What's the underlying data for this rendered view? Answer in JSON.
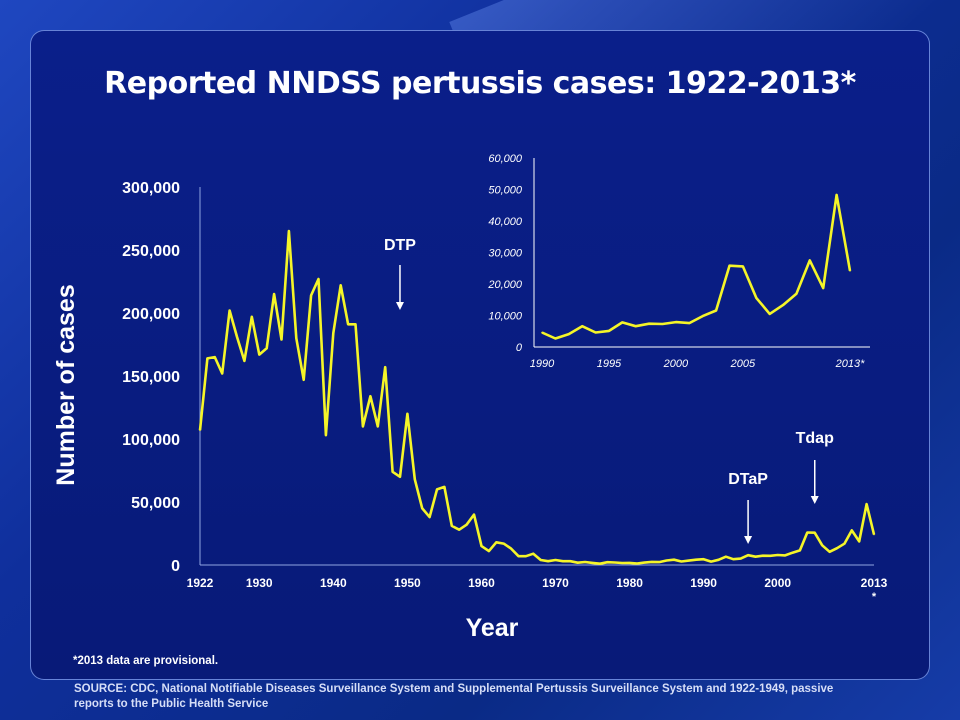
{
  "title": "Reported  NNDSS pertussis cases: 1922-2013*",
  "footnote": "*2013 data are provisional.",
  "source": "SOURCE:  CDC, National Notifiable Diseases  Surveillance System and Supplemental Pertussis  Surveillance System and 1922-1949,  passive  reports to the Public Health Service",
  "colors": {
    "line": "#f5f528",
    "axis": "#ffffff",
    "inset_axis": "#ffffff"
  },
  "chart_data": [
    {
      "type": "line",
      "xlabel": "Year",
      "ylabel": "Number of cases",
      "ylim": [
        0,
        300000
      ],
      "yticks": [
        0,
        50000,
        100000,
        150000,
        200000,
        250000,
        300000
      ],
      "ytick_labels": [
        "0",
        "50,000",
        "100,000",
        "150,000",
        "200,000",
        "250,000",
        "300,000"
      ],
      "xlim": [
        1922,
        2013
      ],
      "xticks": [
        1922,
        1930,
        1940,
        1950,
        1960,
        1970,
        1980,
        1990,
        2000,
        2013
      ],
      "xtick_labels": [
        "1922",
        "1930",
        "1940",
        "1950",
        "1960",
        "1970",
        "1980",
        "1990",
        "2000",
        "2013\n*"
      ],
      "annotations": [
        {
          "label": "DTP",
          "x": 1949
        },
        {
          "label": "DTaP",
          "x": 1996
        },
        {
          "label": "Tdap",
          "x": 2005
        }
      ],
      "x": [
        1922,
        1923,
        1924,
        1925,
        1926,
        1927,
        1928,
        1929,
        1930,
        1931,
        1932,
        1933,
        1934,
        1935,
        1936,
        1937,
        1938,
        1939,
        1940,
        1941,
        1942,
        1943,
        1944,
        1945,
        1946,
        1947,
        1948,
        1949,
        1950,
        1951,
        1952,
        1953,
        1954,
        1955,
        1956,
        1957,
        1958,
        1959,
        1960,
        1961,
        1962,
        1963,
        1964,
        1965,
        1966,
        1967,
        1968,
        1969,
        1970,
        1971,
        1972,
        1973,
        1974,
        1975,
        1976,
        1977,
        1978,
        1979,
        1980,
        1981,
        1982,
        1983,
        1984,
        1985,
        1986,
        1987,
        1988,
        1989,
        1990,
        1991,
        1992,
        1993,
        1994,
        1995,
        1996,
        1997,
        1998,
        1999,
        2000,
        2001,
        2002,
        2003,
        2004,
        2005,
        2006,
        2007,
        2008,
        2009,
        2010,
        2011,
        2012,
        2013
      ],
      "values": [
        107000,
        164000,
        165000,
        152000,
        202000,
        181000,
        162000,
        197000,
        167000,
        172000,
        215000,
        179000,
        265000,
        180000,
        147000,
        214000,
        227000,
        103000,
        184000,
        222000,
        191000,
        191000,
        110000,
        134000,
        110000,
        157000,
        74000,
        70000,
        120000,
        68000,
        45000,
        38000,
        60000,
        62000,
        31000,
        28000,
        32000,
        40000,
        15000,
        11000,
        18000,
        17000,
        13000,
        7000,
        7000,
        9000,
        4000,
        3000,
        4000,
        3000,
        3000,
        1800,
        2400,
        1700,
        1000,
        2200,
        2000,
        1600,
        1700,
        1200,
        1900,
        2500,
        2300,
        3600,
        4200,
        2800,
        3500,
        4200,
        4600,
        2700,
        4100,
        6600,
        4600,
        5100,
        7800,
        6600,
        7400,
        7300,
        7900,
        7600,
        9800,
        11600,
        25800,
        25600,
        15600,
        10500,
        13300,
        16900,
        27500,
        18700,
        48300,
        24200
      ]
    },
    {
      "type": "line",
      "xlim": [
        1990,
        2013
      ],
      "ylim": [
        0,
        60000
      ],
      "yticks": [
        0,
        10000,
        20000,
        30000,
        40000,
        50000,
        60000
      ],
      "ytick_labels": [
        "0",
        "10,000",
        "20,000",
        "30,000",
        "40,000",
        "50,000",
        "60,000"
      ],
      "xticks": [
        1990,
        1995,
        2000,
        2005,
        2013
      ],
      "xtick_labels": [
        "1990",
        "1995",
        "2000",
        "2005",
        "2013*"
      ],
      "x": [
        1990,
        1991,
        1992,
        1993,
        1994,
        1995,
        1996,
        1997,
        1998,
        1999,
        2000,
        2001,
        2002,
        2003,
        2004,
        2005,
        2006,
        2007,
        2008,
        2009,
        2010,
        2011,
        2012,
        2013
      ],
      "values": [
        4600,
        2700,
        4100,
        6600,
        4600,
        5100,
        7800,
        6600,
        7400,
        7300,
        7900,
        7600,
        9800,
        11600,
        25800,
        25600,
        15600,
        10500,
        13300,
        16900,
        27500,
        18700,
        48300,
        24200
      ]
    }
  ]
}
